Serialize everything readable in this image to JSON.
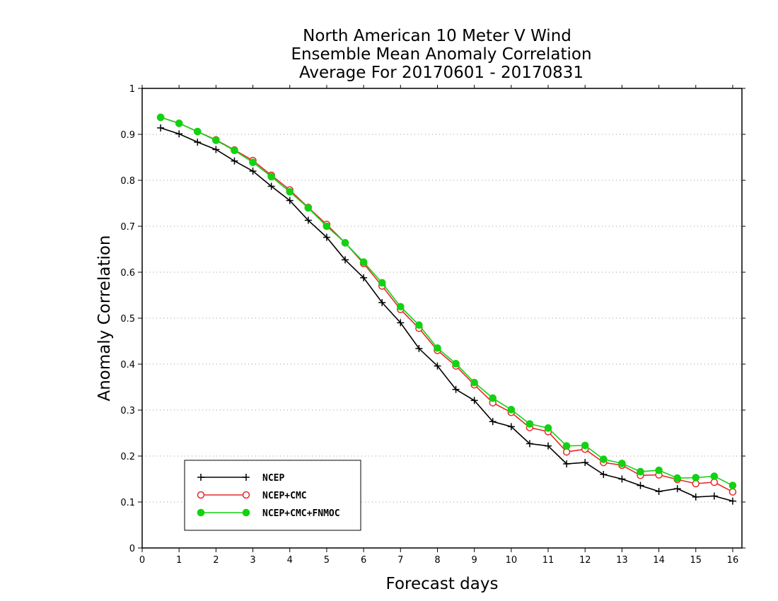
{
  "chart_data": {
    "type": "line",
    "title_lines": [
      "North American 10 Meter V Wind",
      "Ensemble Mean Anomaly Correlation",
      "Average For 20170601 - 20170831"
    ],
    "xlabel": "Forecast days",
    "ylabel": "Anomaly Correlation",
    "xlim": [
      0,
      16.25
    ],
    "ylim": [
      0,
      1
    ],
    "x_ticks": [
      0,
      1,
      2,
      3,
      4,
      5,
      6,
      7,
      8,
      9,
      10,
      11,
      12,
      13,
      14,
      15,
      16
    ],
    "y_ticks": [
      0,
      0.1,
      0.2,
      0.3,
      0.4,
      0.5,
      0.6,
      0.7,
      0.8,
      0.9,
      1
    ],
    "y_tick_labels": [
      "0",
      "0.1",
      "0.2",
      "0.3",
      "0.4",
      "0.5",
      "0.6",
      "0.7",
      "0.8",
      "0.9",
      "1"
    ],
    "grid": "horizontal-dotted",
    "legend_position": "bottom-left",
    "x": [
      0.5,
      1,
      1.5,
      2,
      2.5,
      3,
      3.5,
      4,
      4.5,
      5,
      5.5,
      6,
      6.5,
      7,
      7.5,
      8,
      8.5,
      9,
      9.5,
      10,
      10.5,
      11,
      11.5,
      12,
      12.5,
      13,
      13.5,
      14,
      14.5,
      15,
      15.5,
      16
    ],
    "series": [
      {
        "name": "NCEP",
        "color": "#000000",
        "marker": "plus",
        "values": [
          0.914,
          0.901,
          0.883,
          0.867,
          0.842,
          0.82,
          0.787,
          0.756,
          0.713,
          0.676,
          0.627,
          0.588,
          0.534,
          0.49,
          0.434,
          0.396,
          0.345,
          0.321,
          0.275,
          0.264,
          0.227,
          0.222,
          0.183,
          0.186,
          0.16,
          0.15,
          0.136,
          0.123,
          0.129,
          0.111,
          0.113,
          0.102
        ]
      },
      {
        "name": "NCEP+CMC",
        "color": "#e8282a",
        "marker": "open-circle",
        "values": [
          0.937,
          0.924,
          0.906,
          0.888,
          0.866,
          0.843,
          0.811,
          0.779,
          0.741,
          0.704,
          0.664,
          0.619,
          0.57,
          0.519,
          0.478,
          0.43,
          0.396,
          0.355,
          0.316,
          0.295,
          0.262,
          0.253,
          0.209,
          0.215,
          0.186,
          0.18,
          0.158,
          0.159,
          0.149,
          0.14,
          0.143,
          0.122
        ]
      },
      {
        "name": "NCEP+CMC+FNMOC",
        "color": "#12d212",
        "marker": "filled-circle",
        "values": [
          0.937,
          0.924,
          0.906,
          0.887,
          0.865,
          0.839,
          0.808,
          0.775,
          0.74,
          0.7,
          0.664,
          0.622,
          0.577,
          0.525,
          0.485,
          0.435,
          0.401,
          0.36,
          0.326,
          0.301,
          0.27,
          0.261,
          0.222,
          0.223,
          0.193,
          0.184,
          0.166,
          0.169,
          0.152,
          0.153,
          0.156,
          0.136
        ]
      }
    ]
  }
}
